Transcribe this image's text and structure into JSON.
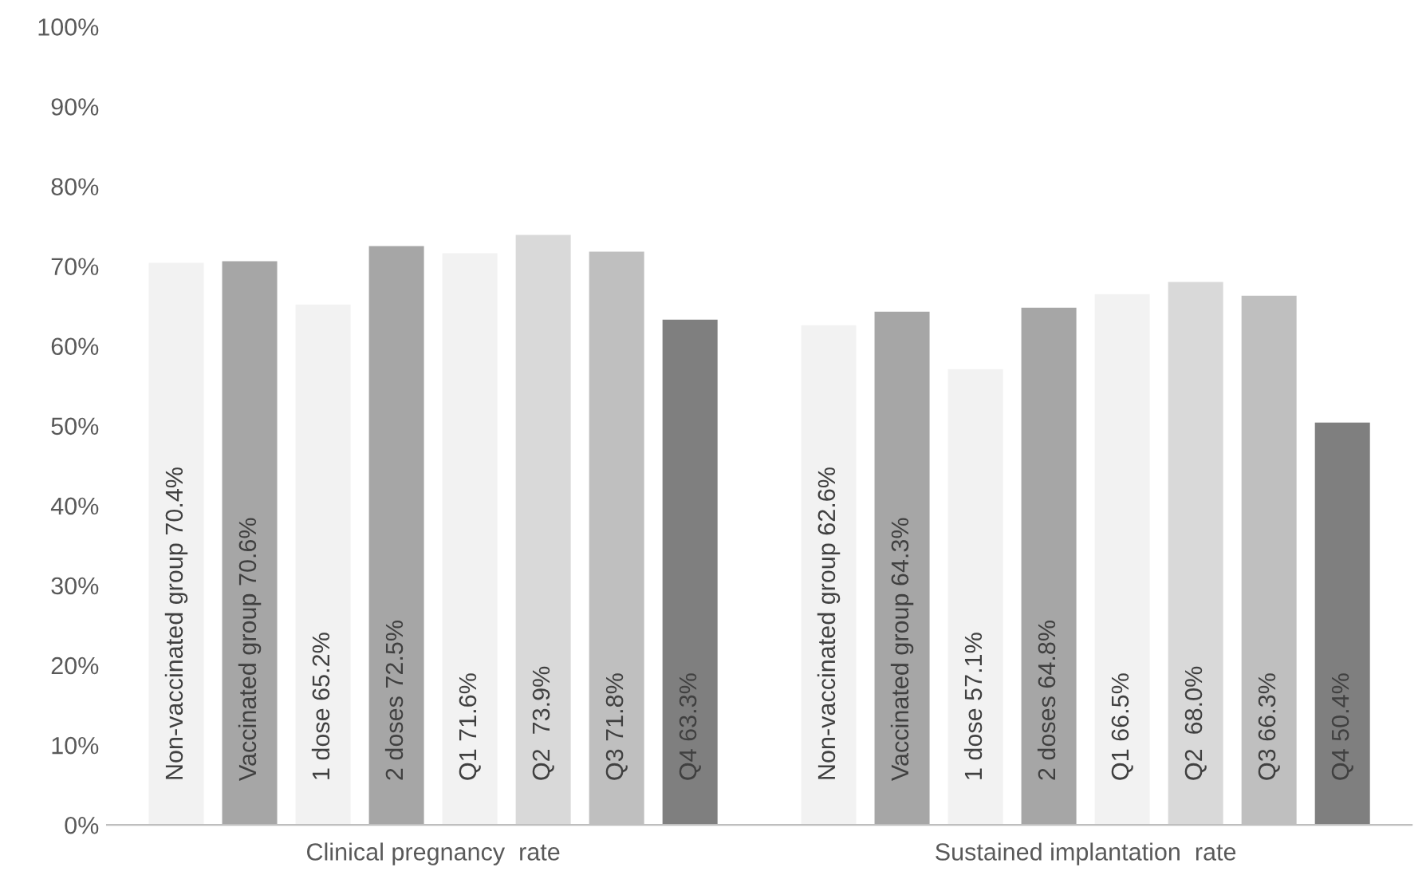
{
  "chart_data": {
    "type": "bar",
    "categories": [
      "Clinical pregnancy  rate",
      "Sustained implantation  rate"
    ],
    "series": [
      {
        "color": "#f2f2f2",
        "values": [
          70.4,
          62.6
        ],
        "value_labels": [
          "Non-vaccinated group 70.4%",
          "Non-vaccinated group 62.6%"
        ]
      },
      {
        "color": "#a6a6a6",
        "values": [
          70.6,
          64.3
        ],
        "value_labels": [
          "Vaccinated group 70.6%",
          "Vaccinated group 64.3%"
        ]
      },
      {
        "color": "#f2f2f2",
        "values": [
          65.2,
          57.1
        ],
        "value_labels": [
          "1 dose 65.2%",
          "1 dose 57.1%"
        ]
      },
      {
        "color": "#a6a6a6",
        "values": [
          72.5,
          64.8
        ],
        "value_labels": [
          "2 doses 72.5%",
          "2 doses 64.8%"
        ]
      },
      {
        "color": "#f2f2f2",
        "values": [
          71.6,
          66.5
        ],
        "value_labels": [
          "Q1 71.6%",
          "Q1 66.5%"
        ]
      },
      {
        "color": "#d9d9d9",
        "values": [
          73.9,
          68.0
        ],
        "value_labels": [
          "Q2  73.9%",
          "Q2  68.0%"
        ]
      },
      {
        "color": "#bfbfbf",
        "values": [
          71.8,
          66.3
        ],
        "value_labels": [
          "Q3 71.8%",
          "Q3 66.3%"
        ]
      },
      {
        "color": "#7f7f7f",
        "values": [
          63.3,
          50.4
        ],
        "value_labels": [
          "Q4 63.3%",
          "Q4 50.4%"
        ]
      }
    ],
    "ylim": [
      0,
      100
    ],
    "yticks": [
      {
        "value": 0,
        "label": "0%"
      },
      {
        "value": 10,
        "label": "10%"
      },
      {
        "value": 20,
        "label": "20%"
      },
      {
        "value": 30,
        "label": "30%"
      },
      {
        "value": 40,
        "label": "40%"
      },
      {
        "value": 50,
        "label": "50%"
      },
      {
        "value": 60,
        "label": "60%"
      },
      {
        "value": 70,
        "label": "70%"
      },
      {
        "value": 80,
        "label": "80%"
      },
      {
        "value": 90,
        "label": "90%"
      },
      {
        "value": 100,
        "label": "100%"
      }
    ],
    "grid": false,
    "legend": false
  }
}
